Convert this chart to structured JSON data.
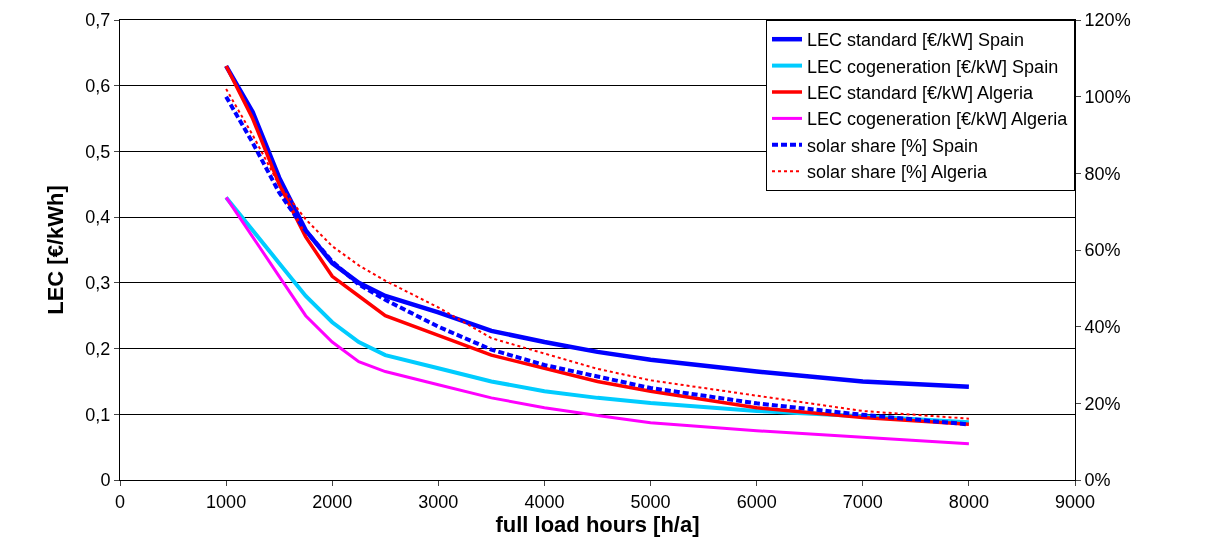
{
  "chart_data": {
    "type": "line",
    "xlabel": "full load hours [h/a]",
    "ylabel": "LEC [€/kWh]",
    "x": [
      1000,
      1250,
      1500,
      1750,
      2000,
      2250,
      2500,
      3000,
      3500,
      4000,
      4500,
      5000,
      6000,
      7000,
      8000
    ],
    "series": [
      {
        "name": "LEC standard [€/kW] Spain",
        "color": "#0000ff",
        "values": [
          0.63,
          0.56,
          0.46,
          0.38,
          0.33,
          0.3,
          0.28,
          0.255,
          0.227,
          0.21,
          0.195,
          0.183,
          0.165,
          0.15,
          0.142
        ]
      },
      {
        "name": "LEC cogeneration [€/kW] Spain",
        "color": "#00ccff",
        "values": [
          0.43,
          0.38,
          0.33,
          0.28,
          0.24,
          0.21,
          0.19,
          0.17,
          0.15,
          0.135,
          0.125,
          0.117,
          0.105,
          0.097,
          0.088
        ]
      },
      {
        "name": "LEC standard [€/kW] Algeria",
        "color": "#ff0000",
        "values": [
          0.63,
          0.55,
          0.45,
          0.37,
          0.31,
          0.28,
          0.25,
          0.22,
          0.19,
          0.17,
          0.15,
          0.135,
          0.11,
          0.095,
          0.085
        ]
      },
      {
        "name": "LEC cogeneration [€/kW] Algeria",
        "color": "#ff00ff",
        "values": [
          0.43,
          0.37,
          0.31,
          0.25,
          0.21,
          0.18,
          0.165,
          0.145,
          0.125,
          0.11,
          0.098,
          0.087,
          0.075,
          0.065,
          0.055
        ]
      },
      {
        "name": "solar share [%] Spain",
        "color": "#0000ff",
        "axis": "y2",
        "line_style": "dashed",
        "values": [
          100,
          88,
          75,
          65,
          57,
          51,
          47,
          40,
          34,
          30,
          27,
          24,
          20,
          17,
          14.5
        ]
      },
      {
        "name": "solar share [%] Algeria",
        "color": "#ff0000",
        "axis": "y2",
        "line_style": "dotted",
        "values": [
          102,
          90,
          77,
          68,
          61,
          56,
          52,
          45,
          37,
          33,
          29,
          26,
          22,
          18,
          16
        ]
      }
    ],
    "xlim": [
      0,
      9000
    ],
    "xticks": [
      0,
      1000,
      2000,
      3000,
      4000,
      5000,
      6000,
      7000,
      8000,
      9000
    ],
    "ylim": [
      0,
      0.7
    ],
    "yticks": [
      {
        "value": 0,
        "label": "0"
      },
      {
        "value": 0.1,
        "label": "0,1"
      },
      {
        "value": 0.2,
        "label": "0,2"
      },
      {
        "value": 0.3,
        "label": "0,3"
      },
      {
        "value": 0.4,
        "label": "0,4"
      },
      {
        "value": 0.5,
        "label": "0,5"
      },
      {
        "value": 0.6,
        "label": "0,6"
      },
      {
        "value": 0.7,
        "label": "0,7"
      }
    ],
    "y2lim": [
      0,
      120
    ],
    "y2ticks": [
      {
        "value": 0,
        "label": "0%"
      },
      {
        "value": 20,
        "label": "20%"
      },
      {
        "value": 40,
        "label": "40%"
      },
      {
        "value": 60,
        "label": "60%"
      },
      {
        "value": 80,
        "label": "80%"
      },
      {
        "value": 100,
        "label": "100%"
      },
      {
        "value": 120,
        "label": "120%"
      }
    ],
    "grid": "y",
    "legend": "top right",
    "marker": "none",
    "line_style": "solid"
  }
}
